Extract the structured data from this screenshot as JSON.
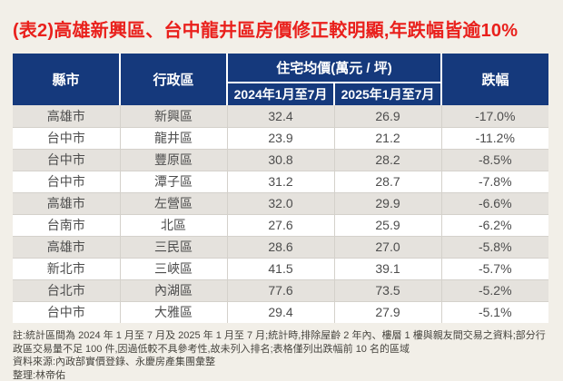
{
  "title": "(表2)高雄新興區、台中龍井區房價修正較明顯,年跌幅皆逾10%",
  "table": {
    "col_county": "縣市",
    "col_district": "行政區",
    "col_price_group": "住宅均價(萬元 / 坪)",
    "col_2024": "2024年1月至7月",
    "col_2025": "2025年1月至7月",
    "col_decline": "跌幅",
    "rows": [
      {
        "county": "高雄市",
        "district": "新興區",
        "avg_2024": "32.4",
        "avg_2025": "26.9",
        "decline": "-17.0%"
      },
      {
        "county": "台中市",
        "district": "龍井區",
        "avg_2024": "23.9",
        "avg_2025": "21.2",
        "decline": "-11.2%"
      },
      {
        "county": "台中市",
        "district": "豐原區",
        "avg_2024": "30.8",
        "avg_2025": "28.2",
        "decline": "-8.5%"
      },
      {
        "county": "台中市",
        "district": "潭子區",
        "avg_2024": "31.2",
        "avg_2025": "28.7",
        "decline": "-7.8%"
      },
      {
        "county": "高雄市",
        "district": "左營區",
        "avg_2024": "32.0",
        "avg_2025": "29.9",
        "decline": "-6.6%"
      },
      {
        "county": "台南市",
        "district": "北區",
        "avg_2024": "27.6",
        "avg_2025": "25.9",
        "decline": "-6.2%"
      },
      {
        "county": "高雄市",
        "district": "三民區",
        "avg_2024": "28.6",
        "avg_2025": "27.0",
        "decline": "-5.8%"
      },
      {
        "county": "新北市",
        "district": "三峽區",
        "avg_2024": "41.5",
        "avg_2025": "39.1",
        "decline": "-5.7%"
      },
      {
        "county": "台北市",
        "district": "內湖區",
        "avg_2024": "77.6",
        "avg_2025": "73.5",
        "decline": "-5.2%"
      },
      {
        "county": "台中市",
        "district": "大雅區",
        "avg_2024": "29.4",
        "avg_2025": "27.9",
        "decline": "-5.1%"
      }
    ]
  },
  "footnotes": {
    "note": "註:統計區間為 2024 年 1 月至 7 月及 2025 年 1 月至 7 月;統計時,排除屋齡 2 年內、樓層 1 樓與親友間交易之資料;部分行政區交易量不足 100 件,因過低較不具參考性,故未列入排名;表格僅列出跌幅前 10 名的區域",
    "source": "資料來源:內政部實價登錄、永慶房產集團彙整",
    "editor": "整理:林帝佑"
  },
  "colors": {
    "title_red": "#e9201c",
    "header_blue": "#15397c",
    "row_alt_gray": "#e5e2dd",
    "page_background": "#f2efe8",
    "cell_text": "#4d4d4d"
  },
  "chart_data": {
    "type": "table",
    "title": "(表2)高雄新興區、台中龍井區房價修正較明顯,年跌幅皆逾10%",
    "columns": [
      "縣市",
      "行政區",
      "住宅均價(萬元 / 坪) 2024年1月至7月",
      "住宅均價(萬元 / 坪) 2025年1月至7月",
      "跌幅"
    ],
    "rows": [
      [
        "高雄市",
        "新興區",
        32.4,
        26.9,
        "-17.0%"
      ],
      [
        "台中市",
        "龍井區",
        23.9,
        21.2,
        "-11.2%"
      ],
      [
        "台中市",
        "豐原區",
        30.8,
        28.2,
        "-8.5%"
      ],
      [
        "台中市",
        "潭子區",
        31.2,
        28.7,
        "-7.8%"
      ],
      [
        "高雄市",
        "左營區",
        32.0,
        29.9,
        "-6.6%"
      ],
      [
        "台南市",
        "北區",
        27.6,
        25.9,
        "-6.2%"
      ],
      [
        "高雄市",
        "三民區",
        28.6,
        27.0,
        "-5.8%"
      ],
      [
        "新北市",
        "三峽區",
        41.5,
        39.1,
        "-5.7%"
      ],
      [
        "台北市",
        "內湖區",
        77.6,
        73.5,
        "-5.2%"
      ],
      [
        "台中市",
        "大雅區",
        29.4,
        27.9,
        "-5.1%"
      ]
    ],
    "notes": [
      "註:統計區間為 2024 年 1 月至 7 月及 2025 年 1 月至 7 月;統計時,排除屋齡 2 年內、樓層 1 樓與親友間交易之資料;部分行政區交易量不足 100 件,因過低較不具參考性,故未列入排名;表格僅列出跌幅前 10 名的區域",
      "資料來源:內政部實價登錄、永慶房產集團彙整",
      "整理:林帝佑"
    ]
  }
}
